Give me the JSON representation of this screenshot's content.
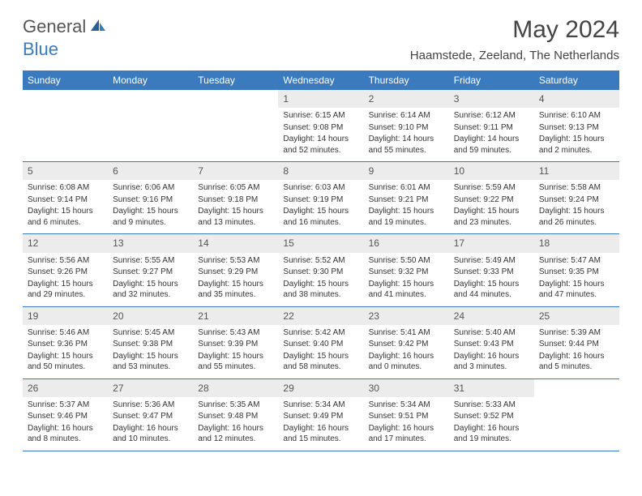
{
  "logo": {
    "general": "General",
    "blue": "Blue"
  },
  "title": "May 2024",
  "location": "Haamstede, Zeeland, The Netherlands",
  "colors": {
    "header_bg": "#3a7bbf",
    "header_text": "#ffffff",
    "daynum_bg": "#ececec",
    "body_text": "#333333",
    "row_border": "#3a7bbf"
  },
  "weekdays": [
    "Sunday",
    "Monday",
    "Tuesday",
    "Wednesday",
    "Thursday",
    "Friday",
    "Saturday"
  ],
  "weeks": [
    [
      {
        "day": "",
        "sunrise": "",
        "sunset": "",
        "daylight": ""
      },
      {
        "day": "",
        "sunrise": "",
        "sunset": "",
        "daylight": ""
      },
      {
        "day": "",
        "sunrise": "",
        "sunset": "",
        "daylight": ""
      },
      {
        "day": "1",
        "sunrise": "Sunrise: 6:15 AM",
        "sunset": "Sunset: 9:08 PM",
        "daylight": "Daylight: 14 hours and 52 minutes."
      },
      {
        "day": "2",
        "sunrise": "Sunrise: 6:14 AM",
        "sunset": "Sunset: 9:10 PM",
        "daylight": "Daylight: 14 hours and 55 minutes."
      },
      {
        "day": "3",
        "sunrise": "Sunrise: 6:12 AM",
        "sunset": "Sunset: 9:11 PM",
        "daylight": "Daylight: 14 hours and 59 minutes."
      },
      {
        "day": "4",
        "sunrise": "Sunrise: 6:10 AM",
        "sunset": "Sunset: 9:13 PM",
        "daylight": "Daylight: 15 hours and 2 minutes."
      }
    ],
    [
      {
        "day": "5",
        "sunrise": "Sunrise: 6:08 AM",
        "sunset": "Sunset: 9:14 PM",
        "daylight": "Daylight: 15 hours and 6 minutes."
      },
      {
        "day": "6",
        "sunrise": "Sunrise: 6:06 AM",
        "sunset": "Sunset: 9:16 PM",
        "daylight": "Daylight: 15 hours and 9 minutes."
      },
      {
        "day": "7",
        "sunrise": "Sunrise: 6:05 AM",
        "sunset": "Sunset: 9:18 PM",
        "daylight": "Daylight: 15 hours and 13 minutes."
      },
      {
        "day": "8",
        "sunrise": "Sunrise: 6:03 AM",
        "sunset": "Sunset: 9:19 PM",
        "daylight": "Daylight: 15 hours and 16 minutes."
      },
      {
        "day": "9",
        "sunrise": "Sunrise: 6:01 AM",
        "sunset": "Sunset: 9:21 PM",
        "daylight": "Daylight: 15 hours and 19 minutes."
      },
      {
        "day": "10",
        "sunrise": "Sunrise: 5:59 AM",
        "sunset": "Sunset: 9:22 PM",
        "daylight": "Daylight: 15 hours and 23 minutes."
      },
      {
        "day": "11",
        "sunrise": "Sunrise: 5:58 AM",
        "sunset": "Sunset: 9:24 PM",
        "daylight": "Daylight: 15 hours and 26 minutes."
      }
    ],
    [
      {
        "day": "12",
        "sunrise": "Sunrise: 5:56 AM",
        "sunset": "Sunset: 9:26 PM",
        "daylight": "Daylight: 15 hours and 29 minutes."
      },
      {
        "day": "13",
        "sunrise": "Sunrise: 5:55 AM",
        "sunset": "Sunset: 9:27 PM",
        "daylight": "Daylight: 15 hours and 32 minutes."
      },
      {
        "day": "14",
        "sunrise": "Sunrise: 5:53 AM",
        "sunset": "Sunset: 9:29 PM",
        "daylight": "Daylight: 15 hours and 35 minutes."
      },
      {
        "day": "15",
        "sunrise": "Sunrise: 5:52 AM",
        "sunset": "Sunset: 9:30 PM",
        "daylight": "Daylight: 15 hours and 38 minutes."
      },
      {
        "day": "16",
        "sunrise": "Sunrise: 5:50 AM",
        "sunset": "Sunset: 9:32 PM",
        "daylight": "Daylight: 15 hours and 41 minutes."
      },
      {
        "day": "17",
        "sunrise": "Sunrise: 5:49 AM",
        "sunset": "Sunset: 9:33 PM",
        "daylight": "Daylight: 15 hours and 44 minutes."
      },
      {
        "day": "18",
        "sunrise": "Sunrise: 5:47 AM",
        "sunset": "Sunset: 9:35 PM",
        "daylight": "Daylight: 15 hours and 47 minutes."
      }
    ],
    [
      {
        "day": "19",
        "sunrise": "Sunrise: 5:46 AM",
        "sunset": "Sunset: 9:36 PM",
        "daylight": "Daylight: 15 hours and 50 minutes."
      },
      {
        "day": "20",
        "sunrise": "Sunrise: 5:45 AM",
        "sunset": "Sunset: 9:38 PM",
        "daylight": "Daylight: 15 hours and 53 minutes."
      },
      {
        "day": "21",
        "sunrise": "Sunrise: 5:43 AM",
        "sunset": "Sunset: 9:39 PM",
        "daylight": "Daylight: 15 hours and 55 minutes."
      },
      {
        "day": "22",
        "sunrise": "Sunrise: 5:42 AM",
        "sunset": "Sunset: 9:40 PM",
        "daylight": "Daylight: 15 hours and 58 minutes."
      },
      {
        "day": "23",
        "sunrise": "Sunrise: 5:41 AM",
        "sunset": "Sunset: 9:42 PM",
        "daylight": "Daylight: 16 hours and 0 minutes."
      },
      {
        "day": "24",
        "sunrise": "Sunrise: 5:40 AM",
        "sunset": "Sunset: 9:43 PM",
        "daylight": "Daylight: 16 hours and 3 minutes."
      },
      {
        "day": "25",
        "sunrise": "Sunrise: 5:39 AM",
        "sunset": "Sunset: 9:44 PM",
        "daylight": "Daylight: 16 hours and 5 minutes."
      }
    ],
    [
      {
        "day": "26",
        "sunrise": "Sunrise: 5:37 AM",
        "sunset": "Sunset: 9:46 PM",
        "daylight": "Daylight: 16 hours and 8 minutes."
      },
      {
        "day": "27",
        "sunrise": "Sunrise: 5:36 AM",
        "sunset": "Sunset: 9:47 PM",
        "daylight": "Daylight: 16 hours and 10 minutes."
      },
      {
        "day": "28",
        "sunrise": "Sunrise: 5:35 AM",
        "sunset": "Sunset: 9:48 PM",
        "daylight": "Daylight: 16 hours and 12 minutes."
      },
      {
        "day": "29",
        "sunrise": "Sunrise: 5:34 AM",
        "sunset": "Sunset: 9:49 PM",
        "daylight": "Daylight: 16 hours and 15 minutes."
      },
      {
        "day": "30",
        "sunrise": "Sunrise: 5:34 AM",
        "sunset": "Sunset: 9:51 PM",
        "daylight": "Daylight: 16 hours and 17 minutes."
      },
      {
        "day": "31",
        "sunrise": "Sunrise: 5:33 AM",
        "sunset": "Sunset: 9:52 PM",
        "daylight": "Daylight: 16 hours and 19 minutes."
      },
      {
        "day": "",
        "sunrise": "",
        "sunset": "",
        "daylight": ""
      }
    ]
  ]
}
